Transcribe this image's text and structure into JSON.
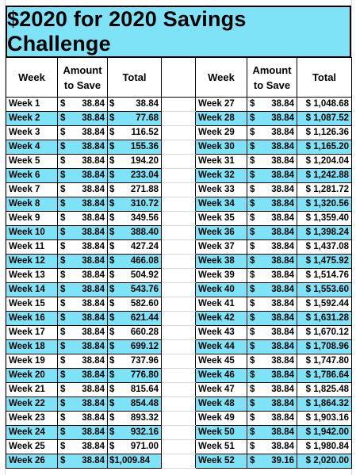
{
  "title": "$2020 for 2020 Savings Challenge",
  "headers": {
    "week": "Week",
    "amount_line1": "Amount",
    "amount_line2": "to Save",
    "total": "Total"
  },
  "left_rows": [
    {
      "week": "Week 1",
      "amount": "38.84",
      "total": "38.84"
    },
    {
      "week": "Week 2",
      "amount": "38.84",
      "total": "77.68"
    },
    {
      "week": "Week 3",
      "amount": "38.84",
      "total": "116.52"
    },
    {
      "week": "Week 4",
      "amount": "38.84",
      "total": "155.36"
    },
    {
      "week": "Week 5",
      "amount": "38.84",
      "total": "194.20"
    },
    {
      "week": "Week 6",
      "amount": "38.84",
      "total": "233.04"
    },
    {
      "week": "Week 7",
      "amount": "38.84",
      "total": "271.88"
    },
    {
      "week": "Week 8",
      "amount": "38.84",
      "total": "310.72"
    },
    {
      "week": "Week 9",
      "amount": "38.84",
      "total": "349.56"
    },
    {
      "week": "Week 10",
      "amount": "38.84",
      "total": "388.40"
    },
    {
      "week": "Week 11",
      "amount": "38.84",
      "total": "427.24"
    },
    {
      "week": "Week 12",
      "amount": "38.84",
      "total": "466.08"
    },
    {
      "week": "Week 13",
      "amount": "38.84",
      "total": "504.92"
    },
    {
      "week": "Week 14",
      "amount": "38.84",
      "total": "543.76"
    },
    {
      "week": "Week 15",
      "amount": "38.84",
      "total": "582.60"
    },
    {
      "week": "Week 16",
      "amount": "38.84",
      "total": "621.44"
    },
    {
      "week": "Week 17",
      "amount": "38.84",
      "total": "660.28"
    },
    {
      "week": "Week 18",
      "amount": "38.84",
      "total": "699.12"
    },
    {
      "week": "Week 19",
      "amount": "38.84",
      "total": "737.96"
    },
    {
      "week": "Week 20",
      "amount": "38.84",
      "total": "776.80"
    },
    {
      "week": "Week 21",
      "amount": "38.84",
      "total": "815.64"
    },
    {
      "week": "Week 22",
      "amount": "38.84",
      "total": "854.48"
    },
    {
      "week": "Week 23",
      "amount": "38.84",
      "total": "893.32"
    },
    {
      "week": "Week 24",
      "amount": "38.84",
      "total": "932.16"
    },
    {
      "week": "Week 25",
      "amount": "38.84",
      "total": "971.00"
    },
    {
      "week": "Week 26",
      "amount": "38.84",
      "total": "$1,009.84"
    }
  ],
  "right_rows": [
    {
      "week": "Week 27",
      "amount": "38.84",
      "total": "$ 1,048.68"
    },
    {
      "week": "Week 28",
      "amount": "38.84",
      "total": "$ 1,087.52"
    },
    {
      "week": "Week 29",
      "amount": "38.84",
      "total": "$ 1,126.36"
    },
    {
      "week": "Week 30",
      "amount": "38.84",
      "total": "$ 1,165.20"
    },
    {
      "week": "Week 31",
      "amount": "38.84",
      "total": "$ 1,204.04"
    },
    {
      "week": "Week 32",
      "amount": "38.84",
      "total": "$ 1,242.88"
    },
    {
      "week": "Week 33",
      "amount": "38.84",
      "total": "$ 1,281.72"
    },
    {
      "week": "Week 34",
      "amount": "38.84",
      "total": "$ 1,320.56"
    },
    {
      "week": "Week 35",
      "amount": "38.84",
      "total": "$ 1,359.40"
    },
    {
      "week": "Week 36",
      "amount": "38.84",
      "total": "$ 1,398.24"
    },
    {
      "week": "Week 37",
      "amount": "38.84",
      "total": "$ 1,437.08"
    },
    {
      "week": "Week 38",
      "amount": "38.84",
      "total": "$ 1,475.92"
    },
    {
      "week": "Week 39",
      "amount": "38.84",
      "total": "$ 1,514.76"
    },
    {
      "week": "Week 40",
      "amount": "38.84",
      "total": "$ 1,553.60"
    },
    {
      "week": "Week 41",
      "amount": "38.84",
      "total": "$ 1,592.44"
    },
    {
      "week": "Week 42",
      "amount": "38.84",
      "total": "$ 1,631.28"
    },
    {
      "week": "Week 43",
      "amount": "38.84",
      "total": "$ 1,670.12"
    },
    {
      "week": "Week 44",
      "amount": "38.84",
      "total": "$ 1,708.96"
    },
    {
      "week": "Week 45",
      "amount": "38.84",
      "total": "$ 1,747.80"
    },
    {
      "week": "Week 46",
      "amount": "38.84",
      "total": "$ 1,786.64"
    },
    {
      "week": "Week 47",
      "amount": "38.84",
      "total": "$ 1,825.48"
    },
    {
      "week": "Week 48",
      "amount": "38.84",
      "total": "$ 1,864.32"
    },
    {
      "week": "Week 49",
      "amount": "38.84",
      "total": "$ 1,903.16"
    },
    {
      "week": "Week 50",
      "amount": "38.84",
      "total": "$ 1,942.00"
    },
    {
      "week": "Week 51",
      "amount": "38.84",
      "total": "$ 1,980.84"
    },
    {
      "week": "Week 52",
      "amount": "39.16",
      "total": "$ 2,020.00"
    }
  ],
  "currency_symbol": "$",
  "colors": {
    "accent_cyan": "#7fe3f7",
    "border": "#000000",
    "gridline": "#d9d9d9"
  }
}
